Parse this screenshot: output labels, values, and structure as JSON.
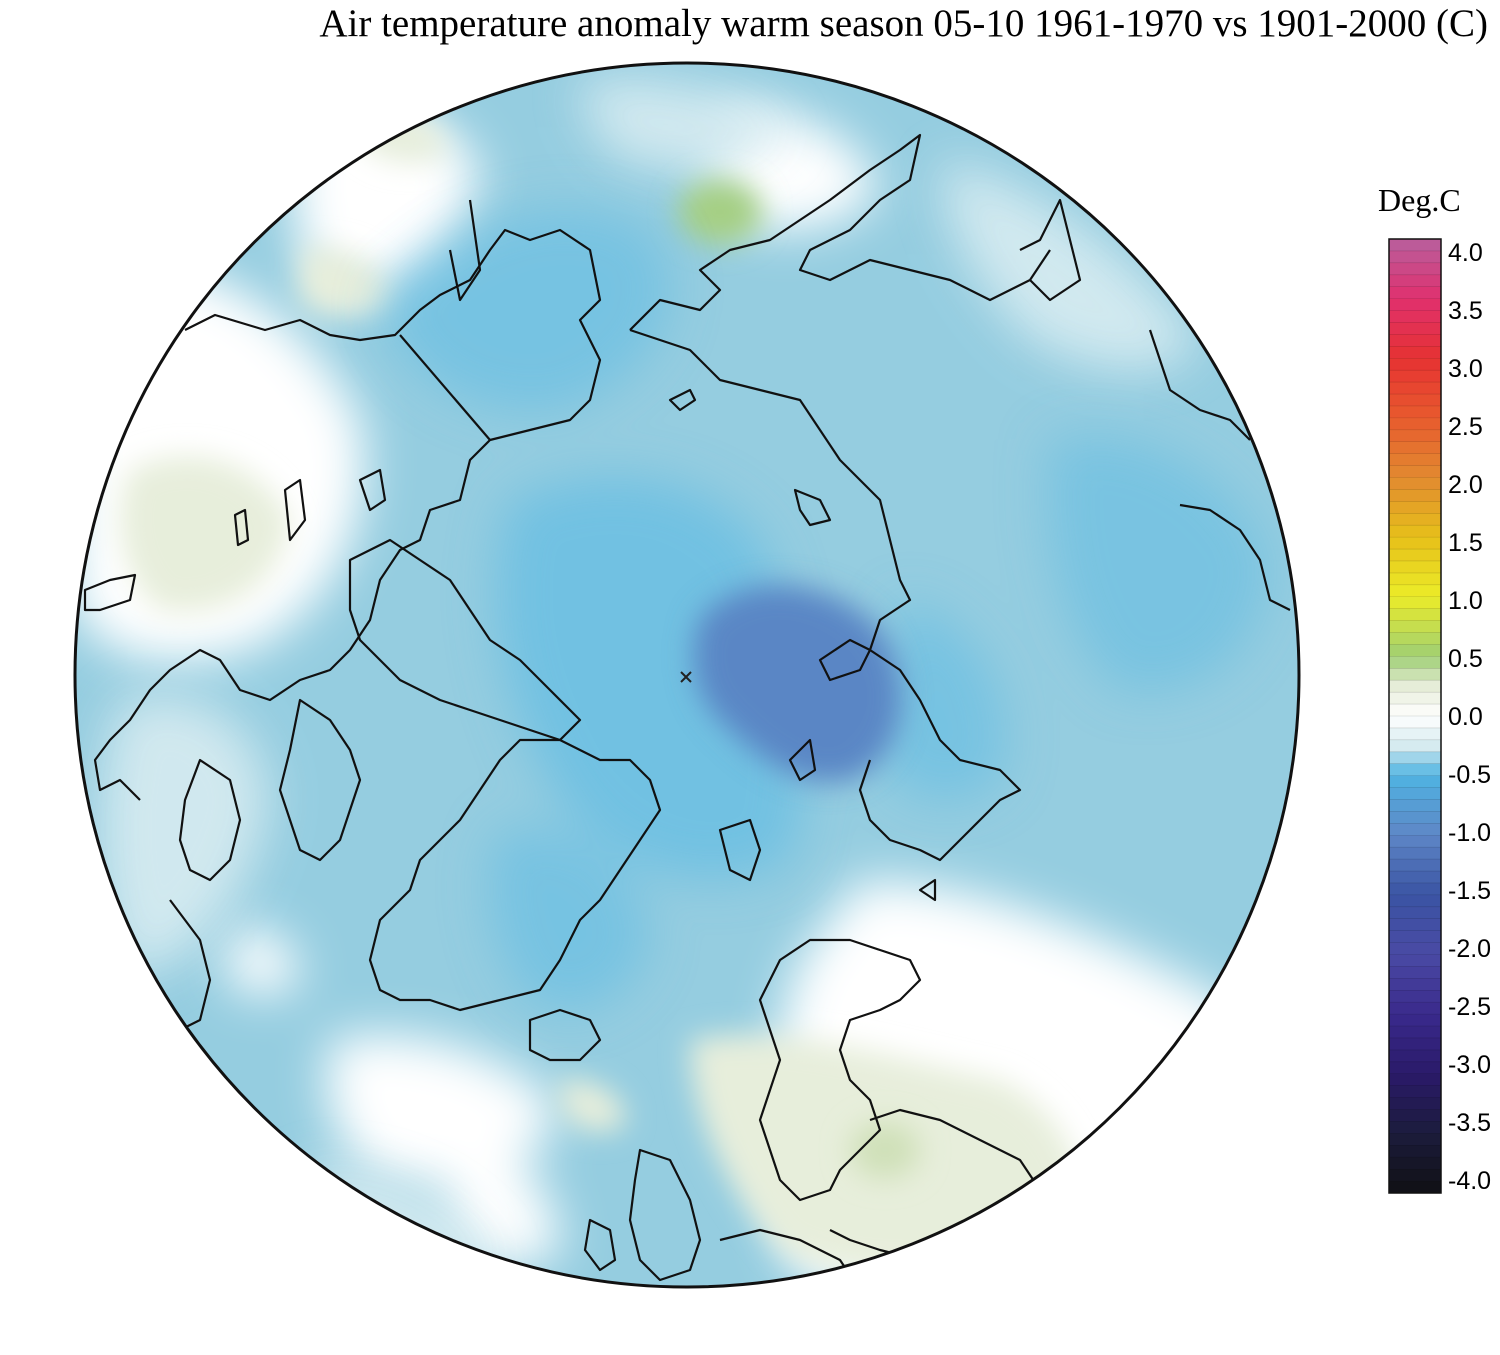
{
  "title": "Air temperature anomaly warm season 05-10 1961-1970 vs 1901-2000 (C)",
  "legend": {
    "title": "Deg.C",
    "ticks": [
      "4.0",
      "3.5",
      "3.0",
      "2.5",
      "2.0",
      "1.5",
      "1.0",
      "0.5",
      "0.0",
      "-0.5",
      "-1.0",
      "-1.5",
      "-2.0",
      "-2.5",
      "-3.0",
      "-3.5",
      "-4.0"
    ],
    "range": [
      -4.0,
      4.0
    ],
    "colors": {
      "4.0": "#b8609e",
      "3.5": "#e0306e",
      "3.0": "#e63232",
      "2.5": "#e85a2e",
      "2.0": "#e28a30",
      "1.5": "#e6c01a",
      "1.0": "#ecec28",
      "0.5": "#9fcf74",
      "0.25": "#e6edd8",
      "0.0": "#ffffff",
      "-0.25": "#d6ebf0",
      "-0.5": "#4fb4e2",
      "-1.0": "#5e86c6",
      "-1.5": "#3a54a4",
      "-2.0": "#4a4aa4",
      "-2.5": "#3a2a8c",
      "-3.0": "#2a1a6a",
      "-3.5": "#1c1c3c",
      "-4.0": "#101014"
    }
  },
  "map": {
    "projection": "polar-stereographic",
    "hemisphere": "north",
    "palette": {
      "ocean_base": "#95cde0",
      "light_blue": "#d4eaf0",
      "pale_green": "#e7eedb",
      "green": "#a5cf83",
      "mid_blue": "#62bce2",
      "deep_blue": "#5a86c5",
      "coast": "#111111"
    }
  }
}
